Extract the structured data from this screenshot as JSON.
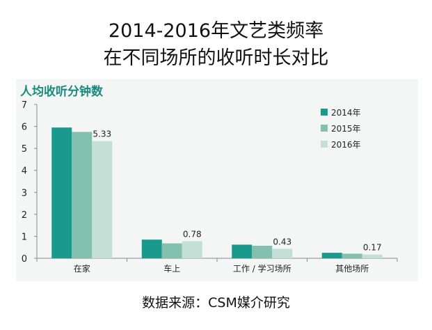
{
  "title_line1": "2014-2016年文艺类频率",
  "title_line2": "在不同场所的收听时长对比",
  "source": "数据来源：CSM媒介研究",
  "colors": {
    "2014年": "#1a9a8c",
    "2015年": "#84c0ae",
    "2016年": "#c4dfd6",
    "panel_bg": "#f4f6f5",
    "unit_label": "#1b8a7e"
  },
  "chart_data": {
    "type": "bar",
    "unit_label": "人均收听分钟数",
    "categories": [
      "在家",
      "车上",
      "工作 / 学习场所",
      "其他场所"
    ],
    "series": [
      {
        "name": "2014年",
        "values": [
          5.95,
          0.85,
          0.62,
          0.25
        ]
      },
      {
        "name": "2015年",
        "values": [
          5.75,
          0.68,
          0.57,
          0.21
        ]
      },
      {
        "name": "2016年",
        "values": [
          5.33,
          0.78,
          0.43,
          0.17
        ]
      }
    ],
    "data_labels": [
      "5.33",
      "0.78",
      "0.43",
      "0.17"
    ],
    "yticks": [
      0,
      1,
      2,
      3,
      4,
      5,
      6,
      7
    ],
    "ylim": [
      0,
      7
    ],
    "grid": false,
    "legend_position": "top-right"
  }
}
